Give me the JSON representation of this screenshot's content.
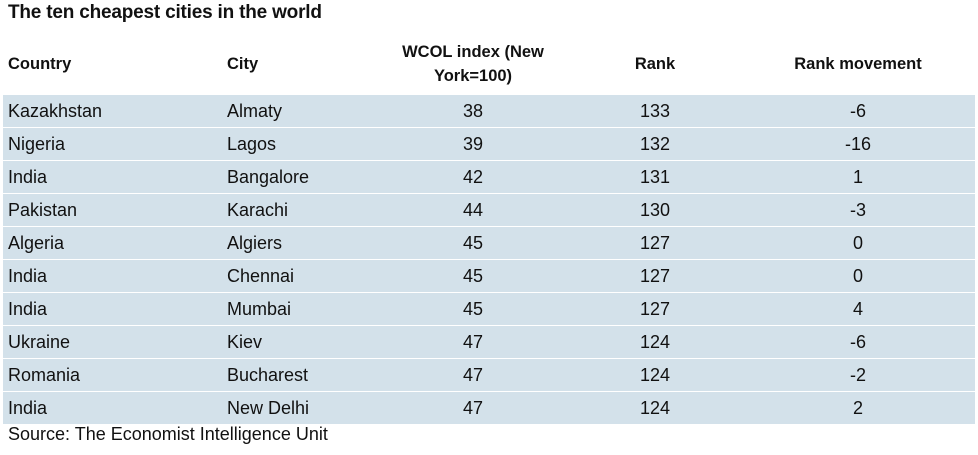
{
  "chart_data": {
    "type": "table",
    "title": "The ten cheapest cities in the world",
    "columns": [
      "Country",
      "City",
      "WCOL index (New York=100)",
      "Rank",
      "Rank movement"
    ],
    "rows": [
      [
        "Kazakhstan",
        "Almaty",
        "38",
        "133",
        "-6"
      ],
      [
        "Nigeria",
        "Lagos",
        "39",
        "132",
        "-16"
      ],
      [
        "India",
        "Bangalore",
        "42",
        "131",
        "1"
      ],
      [
        "Pakistan",
        "Karachi",
        "44",
        "130",
        "-3"
      ],
      [
        "Algeria",
        "Algiers",
        "45",
        "127",
        "0"
      ],
      [
        "India",
        "Chennai",
        "45",
        "127",
        "0"
      ],
      [
        "India",
        "Mumbai",
        "45",
        "127",
        "4"
      ],
      [
        "Ukraine",
        "Kiev",
        "47",
        "124",
        "-6"
      ],
      [
        "Romania",
        "Bucharest",
        "47",
        "124",
        "-2"
      ],
      [
        "India",
        "New Delhi",
        "47",
        "124",
        "2"
      ]
    ],
    "source": "Source: The Economist Intelligence Unit",
    "colors": {
      "row_background": "#d3e1ea",
      "row_separator": "#ffffff"
    }
  }
}
